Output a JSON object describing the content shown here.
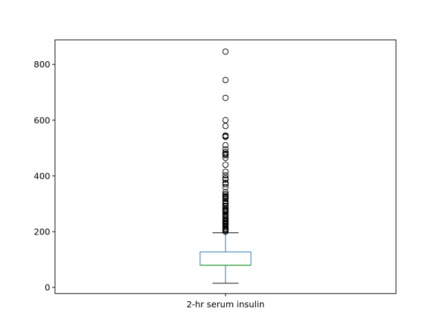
{
  "chart_data": {
    "type": "box",
    "categories": [
      "2-hr serum insulin"
    ],
    "title": "",
    "xlabel": "",
    "ylabel": "",
    "ylim": [
      -22,
      888
    ],
    "yticks": [
      0,
      200,
      400,
      600,
      800
    ],
    "grid": false,
    "legend": "none",
    "box": {
      "whisker_low": 15,
      "q1": 79.8,
      "median": 79.8,
      "q3": 127.25,
      "whisker_high": 196
    },
    "outliers": [
      846,
      744,
      680,
      600,
      579,
      545,
      543,
      540,
      510,
      495,
      485,
      480,
      478,
      474,
      465,
      440,
      415,
      402,
      392,
      387,
      375,
      370,
      360,
      342,
      335,
      330,
      326,
      325,
      321,
      318,
      310,
      304,
      300,
      293,
      291,
      285,
      280,
      278,
      275,
      272,
      271,
      265,
      260,
      258,
      255,
      250,
      245,
      240,
      237,
      235,
      231,
      230,
      228,
      225,
      220,
      215,
      210,
      207,
      205,
      204,
      200
    ],
    "colors": {
      "box": "#1f77b4",
      "median": "#2ca02c",
      "whisker": "#1f77b4",
      "cap": "#000000",
      "outlier_edge": "#000000",
      "axes": "#000000"
    }
  }
}
